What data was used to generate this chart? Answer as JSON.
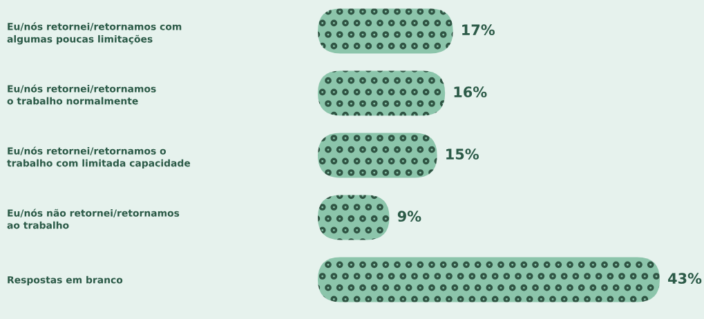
{
  "chart_data": {
    "type": "bar",
    "orientation": "horizontal",
    "categories": [
      "Eu/nós retornei/retornamos com\nalgumas poucas limitações",
      "Eu/nós retornei/retornamos\no trabalho normalmente",
      "Eu/nós retornei/retornamos o\ntrabalho com limitada capacidade",
      "Eu/nós não retornei/retornamos\nao trabalho",
      "Respostas em branco"
    ],
    "values": [
      17,
      16,
      15,
      9,
      43
    ],
    "value_labels": [
      "17%",
      "16%",
      "15%",
      "9%",
      "43%"
    ],
    "color": "#8cc5ab"
  }
}
